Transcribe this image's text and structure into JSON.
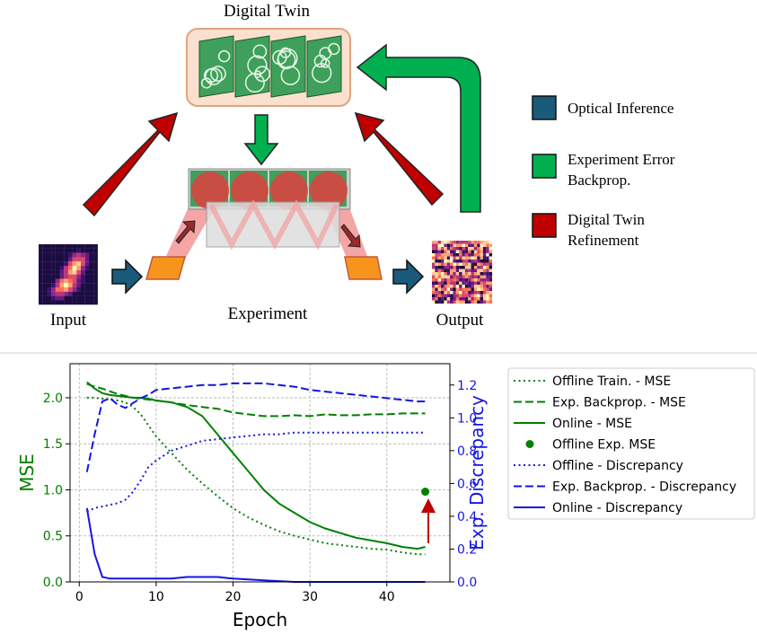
{
  "diagram": {
    "title": "Digital Twin",
    "input": "Input",
    "experiment": "Experiment",
    "output": "Output",
    "legend": [
      [
        "Optical Inference"
      ],
      [
        "Experiment Error",
        "Backprop."
      ],
      [
        "Digital Twin",
        "Refinement"
      ]
    ]
  },
  "chart_data": {
    "type": "line",
    "xlabel": "Epoch",
    "ylabel": "MSE",
    "y2label": "Exp. Discrepancy",
    "ycolor": "#008000",
    "y2color": "#1515e6",
    "grid": true,
    "x": [
      1,
      2,
      3,
      4,
      5,
      6,
      7,
      8,
      9,
      10,
      12,
      14,
      16,
      18,
      20,
      22,
      24,
      26,
      28,
      30,
      32,
      34,
      36,
      38,
      40,
      42,
      44,
      45
    ],
    "xlim": [
      -1.2,
      48.2
    ],
    "xticks": [
      0,
      10,
      20,
      30,
      40
    ],
    "ylim": [
      0,
      2.37
    ],
    "yticks": [
      {
        "value": 0,
        "label": "0.0"
      },
      0.5,
      {
        "value": 1,
        "label": "1.0"
      },
      1.5,
      {
        "value": 2,
        "label": "2.0"
      }
    ],
    "y2lim": [
      0,
      1.33
    ],
    "y2ticks": [
      {
        "value": 0,
        "label": "0.0"
      },
      0.2,
      0.4,
      0.6,
      0.8,
      {
        "value": 1,
        "label": "1.0"
      },
      1.2
    ],
    "series": [
      {
        "name": "Offline Train. - MSE",
        "color": "#008000",
        "style": "dotted",
        "values": [
          2.0,
          2.0,
          1.99,
          1.98,
          1.97,
          1.95,
          1.9,
          1.82,
          1.7,
          1.58,
          1.4,
          1.22,
          1.07,
          0.93,
          0.8,
          0.7,
          0.62,
          0.55,
          0.5,
          0.46,
          0.42,
          0.4,
          0.38,
          0.36,
          0.35,
          0.32,
          0.3,
          0.3
        ]
      },
      {
        "name": "Exp. Backprop. - MSE",
        "color": "#008000",
        "style": "dashed",
        "values": [
          2.15,
          2.12,
          2.1,
          2.07,
          2.04,
          2.02,
          2.0,
          1.99,
          1.98,
          1.97,
          1.95,
          1.92,
          1.9,
          1.88,
          1.84,
          1.82,
          1.8,
          1.8,
          1.81,
          1.8,
          1.82,
          1.81,
          1.81,
          1.82,
          1.82,
          1.83,
          1.83,
          1.83
        ]
      },
      {
        "name": "Online - MSE",
        "color": "#008000",
        "style": "solid",
        "values": [
          2.17,
          2.1,
          2.05,
          2.03,
          2.02,
          2.01,
          2.0,
          2.0,
          1.99,
          1.97,
          1.95,
          1.9,
          1.8,
          1.6,
          1.4,
          1.2,
          1.0,
          0.85,
          0.75,
          0.65,
          0.58,
          0.53,
          0.48,
          0.45,
          0.42,
          0.38,
          0.36,
          0.38
        ]
      },
      {
        "name": "Offline Exp. MSE",
        "color": "#008000",
        "style": "marker",
        "x": [
          45
        ],
        "values": [
          0.98
        ]
      },
      {
        "name": "Offline - Discrepancy",
        "color": "#1515e6",
        "style": "dotted",
        "axis": "y2",
        "values": [
          0.43,
          0.45,
          0.46,
          0.47,
          0.48,
          0.5,
          0.55,
          0.62,
          0.7,
          0.74,
          0.8,
          0.83,
          0.86,
          0.87,
          0.88,
          0.89,
          0.9,
          0.9,
          0.91,
          0.91,
          0.91,
          0.91,
          0.91,
          0.91,
          0.91,
          0.91,
          0.91,
          0.91
        ]
      },
      {
        "name": "Exp. Backprop. - Discrepancy",
        "color": "#1515e6",
        "style": "dashed",
        "axis": "y2",
        "values": [
          0.67,
          0.9,
          1.1,
          1.12,
          1.08,
          1.06,
          1.09,
          1.12,
          1.14,
          1.17,
          1.18,
          1.19,
          1.2,
          1.2,
          1.21,
          1.21,
          1.21,
          1.2,
          1.19,
          1.17,
          1.16,
          1.15,
          1.14,
          1.13,
          1.12,
          1.11,
          1.1,
          1.1
        ]
      },
      {
        "name": "Online - Discrepancy",
        "color": "#1515e6",
        "style": "solid",
        "axis": "y2",
        "values": [
          0.45,
          0.17,
          0.03,
          0.02,
          0.02,
          0.02,
          0.02,
          0.02,
          0.02,
          0.02,
          0.02,
          0.03,
          0.03,
          0.03,
          0.02,
          0.015,
          0.01,
          0.005,
          0,
          0,
          0,
          0,
          0,
          0,
          0,
          0,
          0,
          0
        ]
      }
    ]
  }
}
